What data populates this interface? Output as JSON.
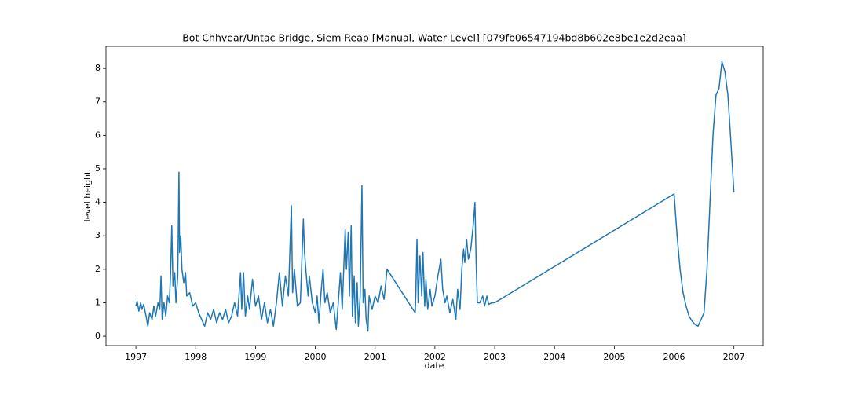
{
  "chart_data": {
    "type": "line",
    "title": "Bot Chhvear/Untac Bridge, Siem Reap [Manual, Water Level] [079fb06547194bd8b602e8be1e2d2eaa]",
    "xlabel": "date",
    "ylabel": "level height",
    "xlim": [
      1996.5,
      2007.49
    ],
    "ylim": [
      -0.28,
      8.66
    ],
    "xticks": [
      1997,
      1998,
      1999,
      2000,
      2001,
      2002,
      2003,
      2004,
      2005,
      2006,
      2007
    ],
    "yticks": [
      0,
      1,
      2,
      3,
      4,
      5,
      6,
      7,
      8
    ],
    "grid": false,
    "series": [
      {
        "color": "#1f77b4",
        "x": [
          1997.0,
          1997.02,
          1997.05,
          1997.08,
          1997.1,
          1997.13,
          1997.17,
          1997.2,
          1997.23,
          1997.27,
          1997.3,
          1997.33,
          1997.37,
          1997.4,
          1997.42,
          1997.44,
          1997.47,
          1997.5,
          1997.53,
          1997.56,
          1997.58,
          1997.6,
          1997.62,
          1997.65,
          1997.67,
          1997.7,
          1997.72,
          1997.73,
          1997.75,
          1997.77,
          1997.8,
          1997.83,
          1997.85,
          1997.9,
          1997.95,
          1998.0,
          1998.05,
          1998.1,
          1998.15,
          1998.2,
          1998.25,
          1998.3,
          1998.35,
          1998.4,
          1998.45,
          1998.5,
          1998.55,
          1998.6,
          1998.65,
          1998.7,
          1998.75,
          1998.77,
          1998.8,
          1998.83,
          1998.87,
          1998.9,
          1998.95,
          1999.0,
          1999.05,
          1999.1,
          1999.15,
          1999.2,
          1999.25,
          1999.3,
          1999.35,
          1999.4,
          1999.45,
          1999.5,
          1999.55,
          1999.6,
          1999.62,
          1999.65,
          1999.7,
          1999.75,
          1999.8,
          1999.82,
          1999.85,
          1999.88,
          1999.9,
          1999.95,
          2000.0,
          2000.03,
          2000.06,
          2000.1,
          2000.13,
          2000.16,
          2000.2,
          2000.25,
          2000.3,
          2000.35,
          2000.38,
          2000.42,
          2000.45,
          2000.5,
          2000.52,
          2000.55,
          2000.57,
          2000.6,
          2000.62,
          2000.65,
          2000.67,
          2000.7,
          2000.72,
          2000.75,
          2000.78,
          2000.8,
          2000.83,
          2000.85,
          2000.88,
          2000.9,
          2000.95,
          2001.0,
          2001.05,
          2001.1,
          2001.15,
          2001.2,
          2001.67,
          2001.68,
          2001.7,
          2001.72,
          2001.75,
          2001.78,
          2001.8,
          2001.83,
          2001.85,
          2001.88,
          2001.92,
          2001.95,
          2002.0,
          2002.05,
          2002.1,
          2002.13,
          2002.17,
          2002.2,
          2002.25,
          2002.3,
          2002.35,
          2002.38,
          2002.42,
          2002.45,
          2002.48,
          2002.5,
          2002.53,
          2002.56,
          2002.6,
          2002.64,
          2002.67,
          2002.69,
          2002.71,
          2002.75,
          2002.8,
          2002.83,
          2002.87,
          2002.9,
          2002.95,
          2003.0,
          2006.0,
          2006.05,
          2006.1,
          2006.15,
          2006.2,
          2006.25,
          2006.3,
          2006.35,
          2006.4,
          2006.45,
          2006.5,
          2006.55,
          2006.6,
          2006.65,
          2006.7,
          2006.75,
          2006.8,
          2006.85,
          2006.9,
          2006.95,
          2007.0
        ],
        "values": [
          0.9,
          1.05,
          0.75,
          1.0,
          0.8,
          0.95,
          0.6,
          0.3,
          0.7,
          0.5,
          0.9,
          0.6,
          1.0,
          0.8,
          1.8,
          0.5,
          1.0,
          0.6,
          1.2,
          1.0,
          1.9,
          3.3,
          1.5,
          1.9,
          1.0,
          1.8,
          4.9,
          2.5,
          3.0,
          2.0,
          1.6,
          1.9,
          1.2,
          1.3,
          0.9,
          1.0,
          0.7,
          0.5,
          0.3,
          0.7,
          0.5,
          0.8,
          0.4,
          0.7,
          0.5,
          0.8,
          0.4,
          0.6,
          1.0,
          0.6,
          1.9,
          0.8,
          1.9,
          0.6,
          1.2,
          0.8,
          1.7,
          0.9,
          1.2,
          0.5,
          1.0,
          0.4,
          0.8,
          0.3,
          1.0,
          1.9,
          0.9,
          1.8,
          1.2,
          3.9,
          1.3,
          2.0,
          0.9,
          1.0,
          3.5,
          2.5,
          1.8,
          1.2,
          1.8,
          1.0,
          0.7,
          1.2,
          0.4,
          1.4,
          2.0,
          1.0,
          1.3,
          0.7,
          1.0,
          0.2,
          0.9,
          1.9,
          0.8,
          3.2,
          2.0,
          3.1,
          1.2,
          3.3,
          0.6,
          1.8,
          0.4,
          1.6,
          0.3,
          1.2,
          4.5,
          1.0,
          1.4,
          0.5,
          0.15,
          1.2,
          0.8,
          1.2,
          1.0,
          1.5,
          1.1,
          2.0,
          0.7,
          1.2,
          2.9,
          1.0,
          2.4,
          1.2,
          2.5,
          0.9,
          1.7,
          0.8,
          1.4,
          0.9,
          1.2,
          1.8,
          2.3,
          1.4,
          1.0,
          1.2,
          0.7,
          1.1,
          0.5,
          1.4,
          0.8,
          2.0,
          2.6,
          2.2,
          2.9,
          2.3,
          2.6,
          3.3,
          4.0,
          2.2,
          1.0,
          1.0,
          1.2,
          0.9,
          1.2,
          0.95,
          1.0,
          1.0,
          4.25,
          3.0,
          2.0,
          1.3,
          0.9,
          0.6,
          0.45,
          0.35,
          0.3,
          0.5,
          0.7,
          2.0,
          4.0,
          6.0,
          7.2,
          7.4,
          8.2,
          7.9,
          7.2,
          5.8,
          4.3
        ]
      }
    ]
  }
}
